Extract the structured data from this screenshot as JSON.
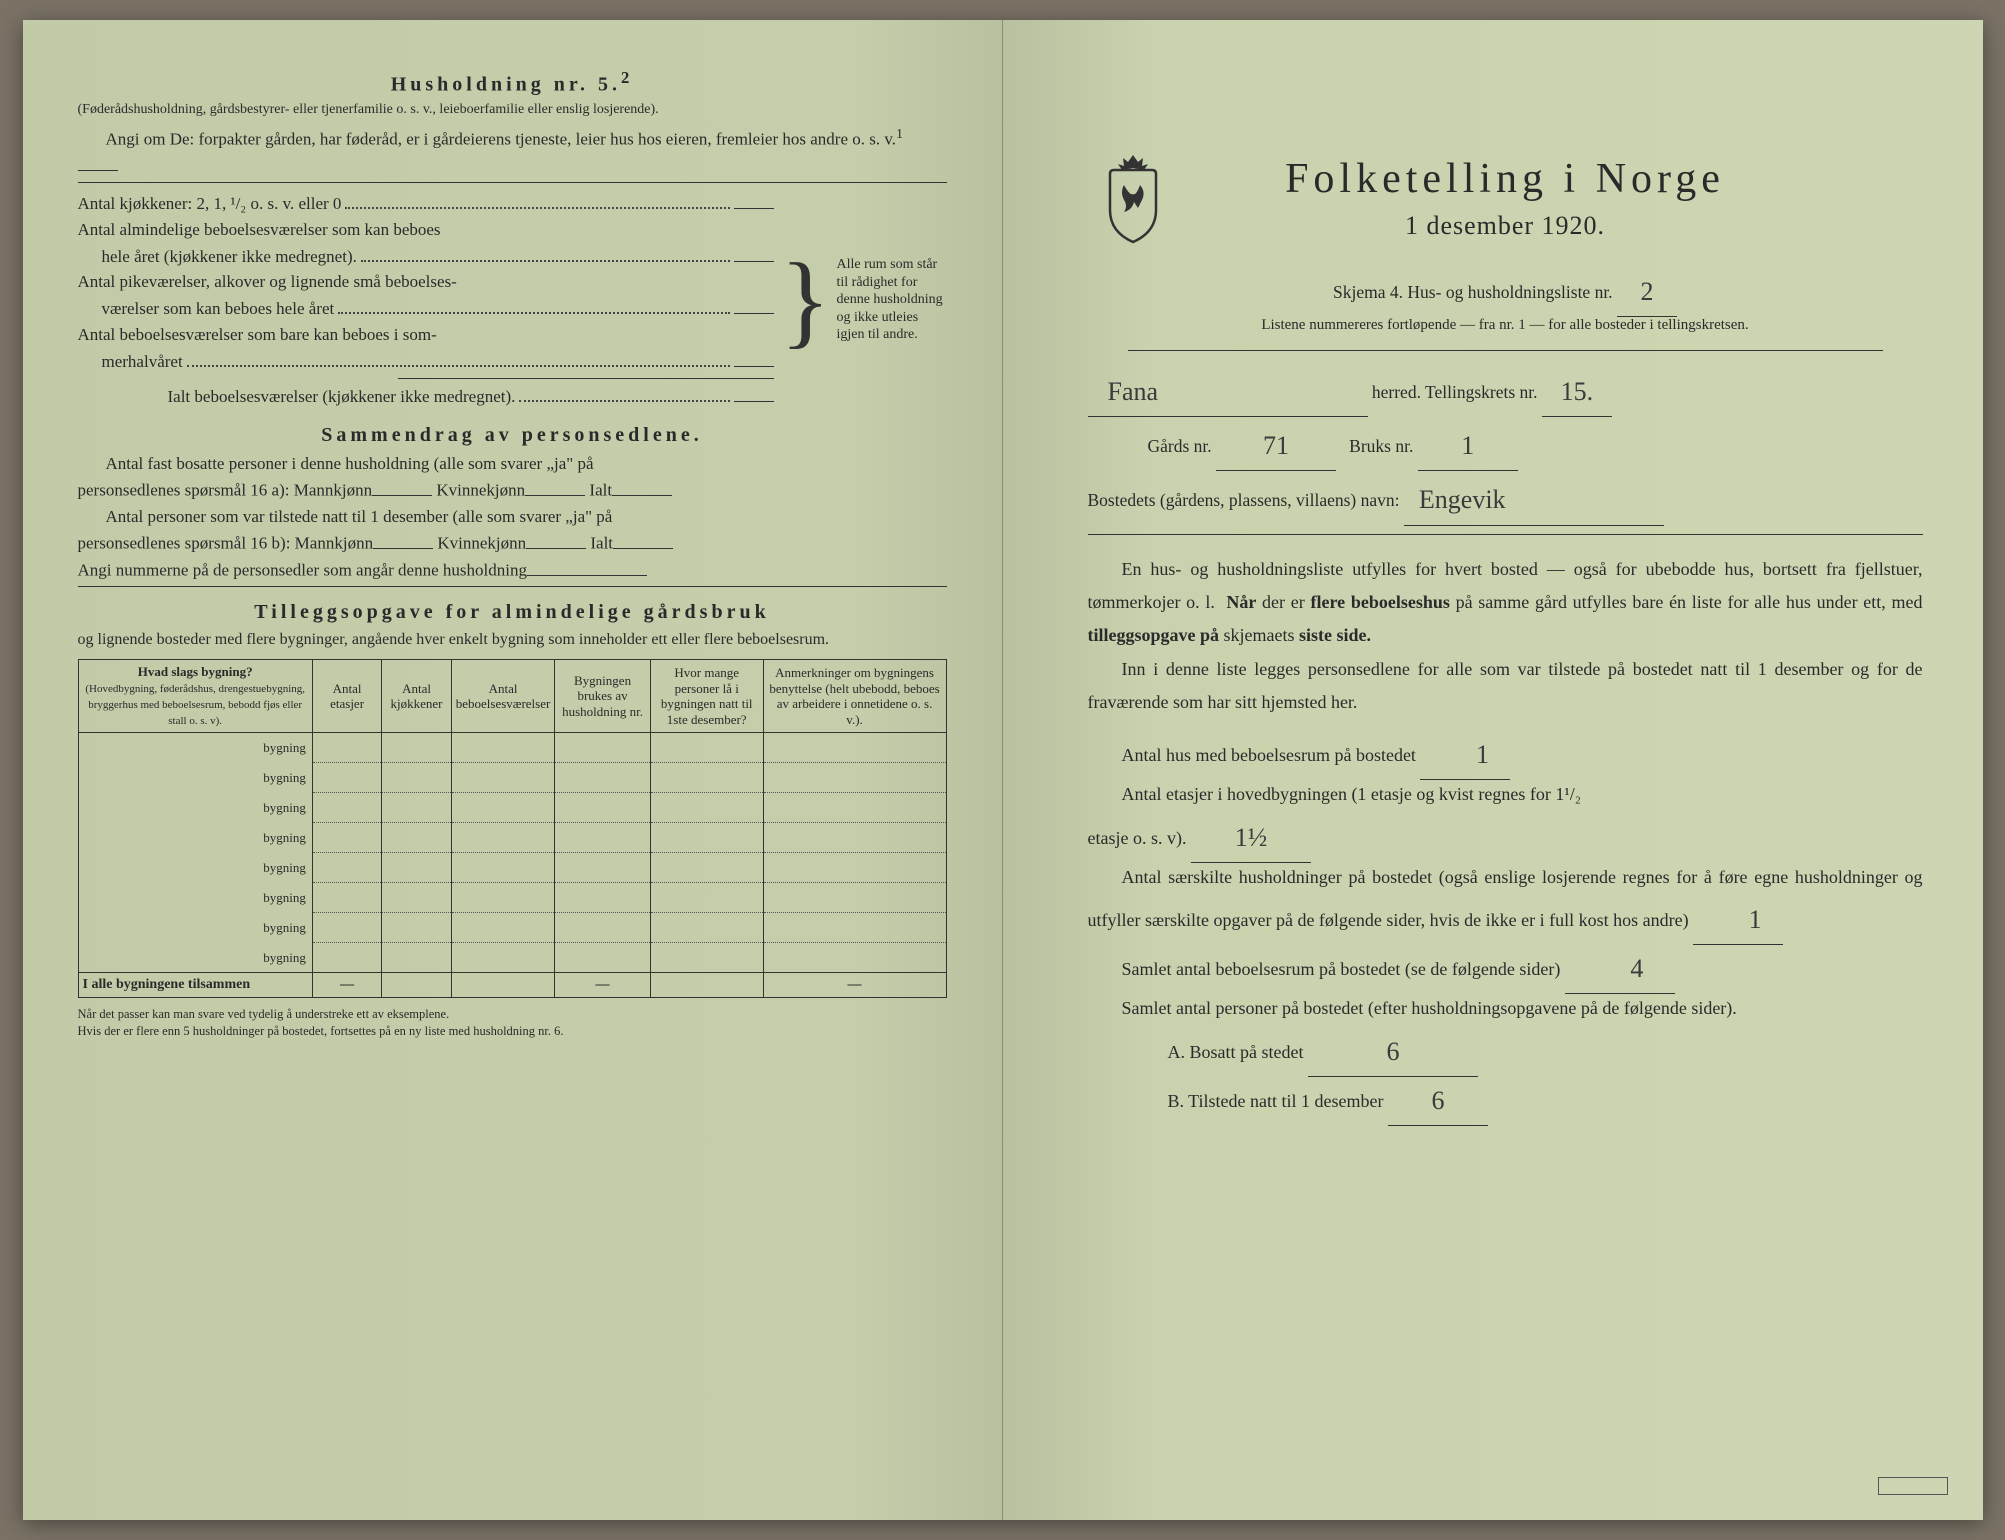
{
  "colors": {
    "paper": "#c9d2ae",
    "ink": "#2a2a2a",
    "handwriting": "#3a3a3a"
  },
  "left": {
    "title": "Husholdning nr. 5.",
    "title_sup": "2",
    "intro1": "(Føderådshusholdning, gårdsbestyrer- eller tjenerfamilie o. s. v., leieboerfamilie eller enslig losjerende).",
    "intro2": "Angi om De: forpakter gården, har føderåd, er i gårdeierens tjeneste, leier hus hos eieren, fremleier hos andre o. s. v.",
    "intro2_sup": "1",
    "rows": {
      "r1": "Antal kjøkkener: 2, 1, ¹/₂ o. s. v. eller 0",
      "r2a": "Antal almindelige beboelsesværelser som kan beboes",
      "r2b": "hele året (kjøkkener ikke medregnet).",
      "r3a": "Antal pikeværelser, alkover og lignende små beboelses-",
      "r3b": "værelser som kan beboes hele året",
      "r4a": "Antal beboelsesværelser som bare kan beboes i som-",
      "r4b": "merhalvåret",
      "r5": "Ialt beboelsesværelser (kjøkkener ikke medregnet).",
      "brace_text": "Alle rum som står til rådighet for denne husholdning og ikke utleies igjen til andre."
    },
    "sammendrag": {
      "title": "Sammendrag av personsedlene.",
      "line1a": "Antal fast bosatte personer i denne husholdning (alle som svarer „ja\" på",
      "line1b": "personsedlenes spørsmål 16 a): Mannkjønn",
      "kv": "Kvinnekjønn",
      "ialt": "Ialt",
      "line2a": "Antal personer som var tilstede natt til 1 desember (alle som svarer „ja\" på",
      "line2b": "personsedlenes spørsmål 16 b): Mannkjønn",
      "line3": "Angi nummerne på de personsedler som angår denne husholdning"
    },
    "tillegg": {
      "title": "Tilleggsopgave for almindelige gårdsbruk",
      "sub": "og lignende bosteder med flere bygninger, angående hver enkelt bygning som inneholder ett eller flere beboelsesrum."
    },
    "table": {
      "headers": {
        "h1": "Hvad slags bygning?",
        "h1_sub": "(Hovedbygning, føderådshus, drengestuebygning, bryggerhus med beboelsesrum, bebodd fjøs eller stall o. s. v).",
        "h2": "Antal etasjer",
        "h3": "Antal kjøkkener",
        "h4": "Antal beboelsesværelser",
        "h5": "Bygningen brukes av husholdning nr.",
        "h6": "Hvor mange personer lå i bygningen natt til 1ste desember?",
        "h7": "Anmerkninger om bygningens benyttelse (helt ubebodd, beboes av arbeidere i onnetidene o. s. v.)."
      },
      "row_label": "bygning",
      "num_rows": 8,
      "footer": "I alle bygningene tilsammen",
      "dash": "—"
    },
    "footnote": "Når det passer kan man svare ved tydelig å understreke ett av eksemplene.\nHvis der er flere enn 5 husholdninger på bostedet, fortsettes på en ny liste med husholdning nr. 6."
  },
  "right": {
    "main_title": "Folketelling i Norge",
    "sub_title": "1 desember 1920.",
    "skjema_line": "Skjema 4.  Hus- og husholdningsliste nr.",
    "skjema_nr": "2",
    "listene": "Listene nummereres fortløpende — fra nr. 1 — for alle bosteder i tellingskretsen.",
    "herred_value": "Fana",
    "herred_lbl": "herred.  Tellingskrets nr.",
    "krets_nr": "15.",
    "gards_lbl": "Gårds nr.",
    "gards_nr": "71",
    "bruks_lbl": "Bruks nr.",
    "bruks_nr": "1",
    "bosted_lbl": "Bostedets (gårdens, plassens, villaens) navn:",
    "bosted_value": "Engevik",
    "para1": "En hus- og husholdningsliste utfylles for hvert bosted — også for ubebodde hus, bortsett fra fjellstuer, tømmerkojer o. l.  Når der er flere beboelseshus på samme gård utfylles bare én liste for alle hus under ett, med tilleggsopgave på skjemaets siste side.",
    "para2": "Inn i denne liste legges personsedlene for alle som var tilstede på bostedet natt til 1 desember og for de fraværende som har sitt hjemsted her.",
    "q1": "Antal hus med beboelsesrum på bostedet",
    "q1_val": "1",
    "q2": "Antal etasjer i hovedbygningen (1 etasje og kvist regnes for 1¹/₂ etasje o. s. v).",
    "q2_val": "1½",
    "q3": "Antal særskilte husholdninger på bostedet (også enslige losjerende regnes for å føre egne husholdninger og utfyller særskilte opgaver på de følgende sider, hvis de ikke er i full kost hos andre)",
    "q3_val": "1",
    "q4": "Samlet antal beboelsesrum på bostedet (se de følgende sider)",
    "q4_val": "4",
    "q5": "Samlet antal personer på bostedet (efter husholdningsopgavene på de følgende sider).",
    "qA": "A.  Bosatt på stedet",
    "qA_val": "6",
    "qB": "B.  Tilstede natt til 1 desember",
    "qB_val": "6"
  }
}
